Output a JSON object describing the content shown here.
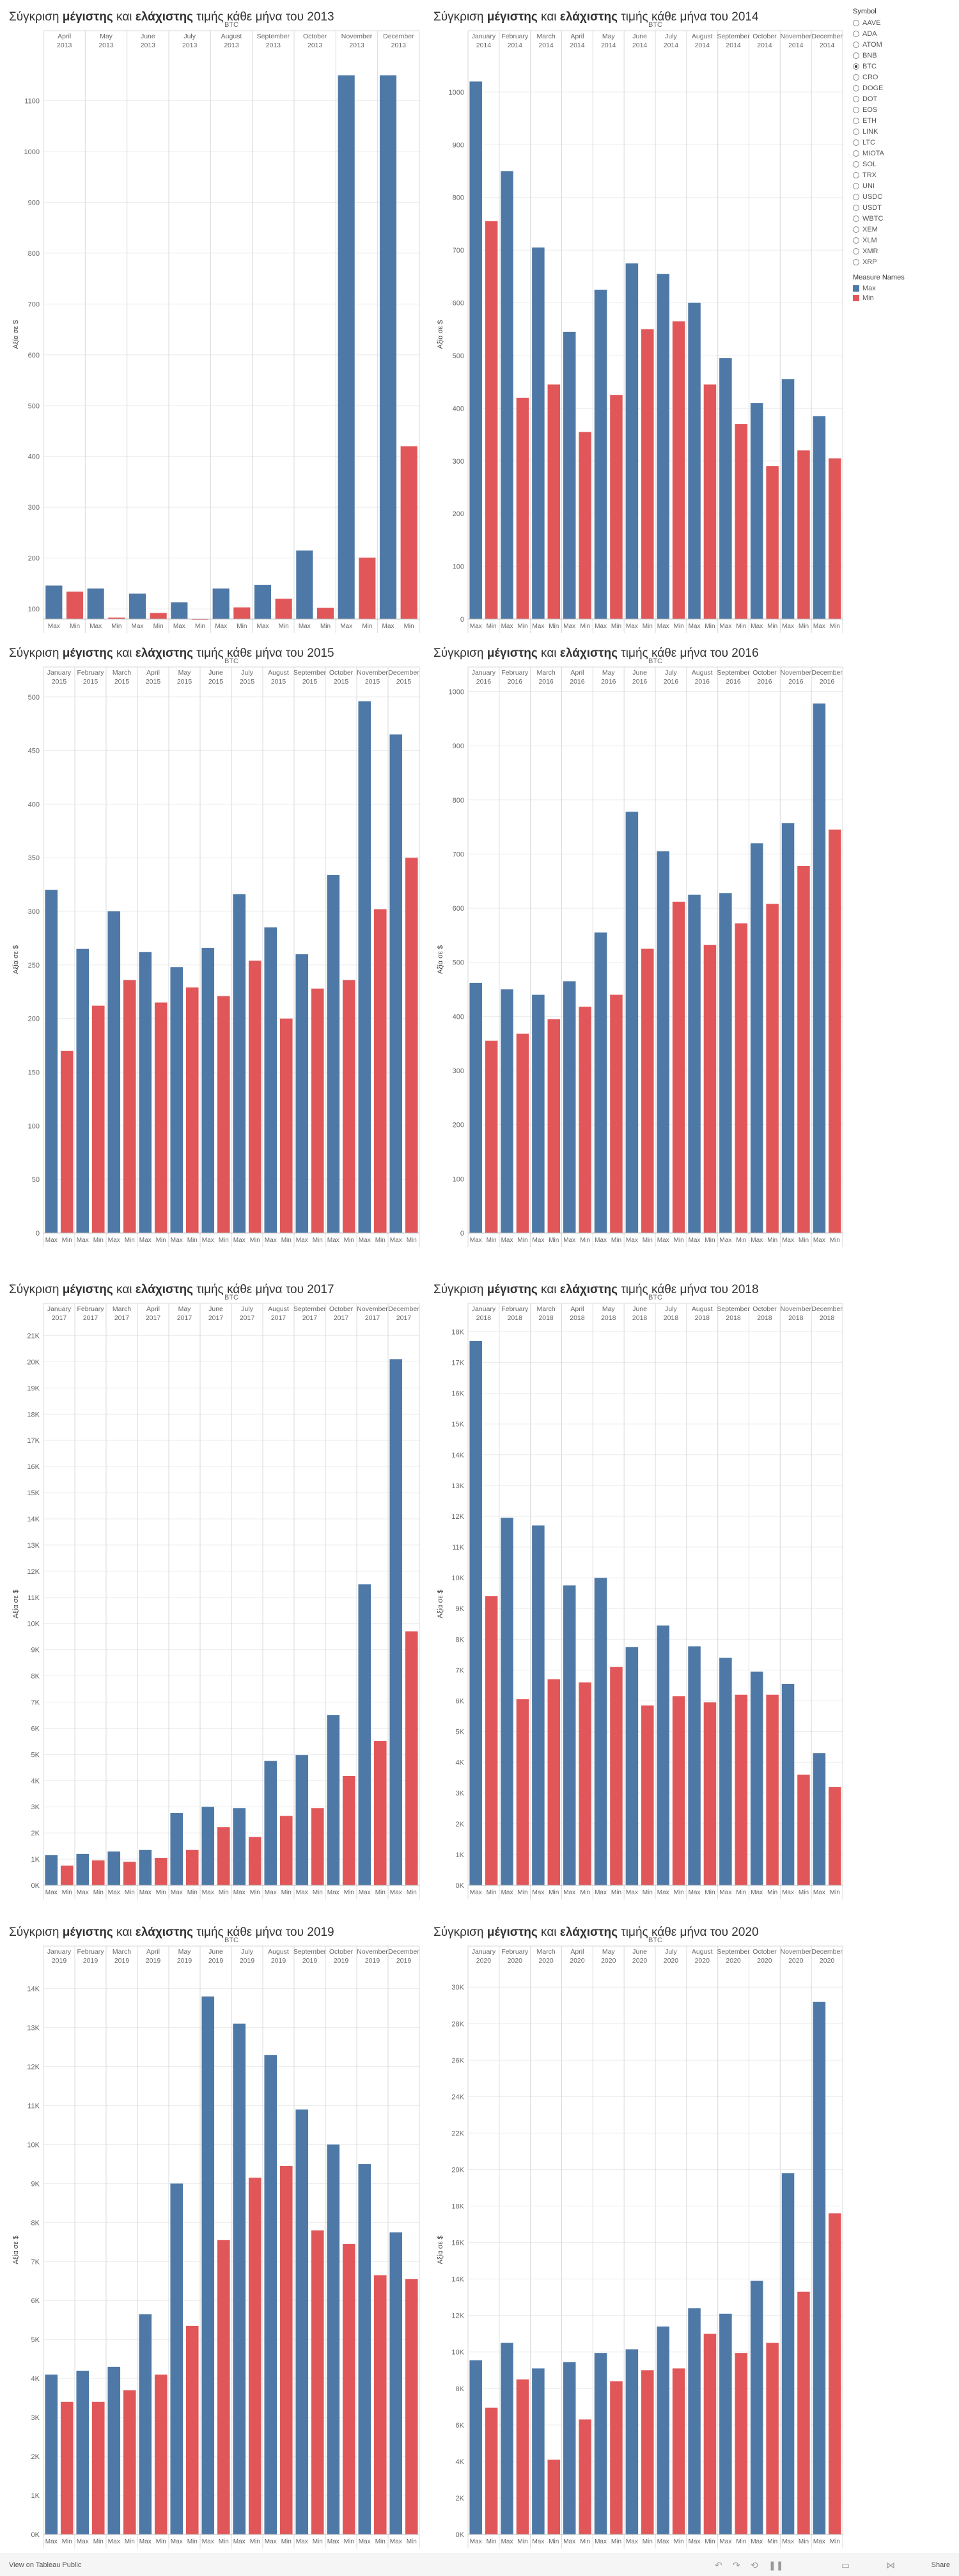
{
  "page": {
    "title_template": "Σύγκριση μέγιστης και ελάχιστης τιμής κάθε μήνα του YEAR"
  },
  "title_parts": {
    "prefix": "Σύγκριση",
    "max_word": "μέγιστης",
    "and": "και",
    "min_word": "ελάχιστης",
    "suffix": "τιμής κάθε μήνα του"
  },
  "colors": {
    "max": "#4e79a7",
    "min": "#e15759",
    "grid": "#ececec",
    "divider": "#d9d9d9",
    "text": "#666666"
  },
  "legend": {
    "symbol_title": "Symbol",
    "symbols": [
      "AAVE",
      "ADA",
      "ATOM",
      "BNB",
      "BTC",
      "CRO",
      "DOGE",
      "DOT",
      "EOS",
      "ETH",
      "LINK",
      "LTC",
      "MIOTA",
      "SOL",
      "TRX",
      "UNI",
      "USDC",
      "USDT",
      "WBTC",
      "XEM",
      "XLM",
      "XMR",
      "XRP"
    ],
    "selected": "BTC",
    "measure_title": "Measure Names",
    "measures": [
      {
        "name": "Max",
        "color": "#4e79a7"
      },
      {
        "name": "Min",
        "color": "#e15759"
      }
    ]
  },
  "footer": {
    "view_text": "View on Tableau Public",
    "share": "Share"
  },
  "chart_data": [
    {
      "type": "bar",
      "year": "2013",
      "symbol": "BTC",
      "ylabel": "Αξία σε $",
      "ylim": [
        80,
        1200
      ],
      "yticks": [
        100,
        200,
        300,
        400,
        500,
        600,
        700,
        800,
        900,
        1000,
        1100
      ],
      "ytick_labels": [
        "100",
        "200",
        "300",
        "400",
        "500",
        "600",
        "700",
        "800",
        "900",
        "1000",
        "1100"
      ],
      "months": [
        "April 2013",
        "May 2013",
        "June 2013",
        "July 2013",
        "August 2013",
        "September 2013",
        "October 2013",
        "November 2013",
        "December 2013"
      ],
      "measure_labels": [
        "Max",
        "Min"
      ],
      "series": [
        {
          "name": "Max",
          "values": [
            146,
            140,
            130,
            113,
            140,
            147,
            215,
            1150,
            1150
          ]
        },
        {
          "name": "Min",
          "values": [
            134,
            83,
            92,
            68,
            103,
            120,
            102,
            201,
            420
          ]
        }
      ]
    },
    {
      "type": "bar",
      "year": "2014",
      "symbol": "BTC",
      "ylabel": "Αξία σε $",
      "ylim": [
        0,
        1080
      ],
      "yticks": [
        0,
        100,
        200,
        300,
        400,
        500,
        600,
        700,
        800,
        900,
        1000
      ],
      "ytick_labels": [
        "0",
        "100",
        "200",
        "300",
        "400",
        "500",
        "600",
        "700",
        "800",
        "900",
        "1000"
      ],
      "months": [
        "January 2014",
        "February 2014",
        "March 2014",
        "April 2014",
        "May 2014",
        "June 2014",
        "July 2014",
        "August 2014",
        "September 2014",
        "October 2014",
        "November 2014",
        "December 2014"
      ],
      "measure_labels": [
        "Max",
        "Min"
      ],
      "series": [
        {
          "name": "Max",
          "values": [
            1020,
            850,
            705,
            545,
            625,
            675,
            655,
            600,
            495,
            410,
            455,
            385
          ]
        },
        {
          "name": "Min",
          "values": [
            755,
            420,
            445,
            355,
            425,
            550,
            565,
            445,
            370,
            290,
            320,
            305
          ]
        }
      ]
    },
    {
      "type": "bar",
      "year": "2015",
      "symbol": "BTC",
      "ylabel": "Αξία σε $",
      "ylim": [
        0,
        510
      ],
      "yticks": [
        0,
        50,
        100,
        150,
        200,
        250,
        300,
        350,
        400,
        450,
        500
      ],
      "ytick_labels": [
        "0",
        "50",
        "100",
        "150",
        "200",
        "250",
        "300",
        "350",
        "400",
        "450",
        "500"
      ],
      "months": [
        "January 2015",
        "February 2015",
        "March 2015",
        "April 2015",
        "May 2015",
        "June 2015",
        "July 2015",
        "August 2015",
        "September 2015",
        "October 2015",
        "November 2015",
        "December 2015"
      ],
      "measure_labels": [
        "Max",
        "Min"
      ],
      "series": [
        {
          "name": "Max",
          "values": [
            320,
            265,
            300,
            262,
            248,
            266,
            316,
            285,
            260,
            334,
            496,
            465
          ]
        },
        {
          "name": "Min",
          "values": [
            170,
            212,
            236,
            215,
            229,
            221,
            254,
            200,
            228,
            236,
            302,
            350
          ]
        }
      ]
    },
    {
      "type": "bar",
      "year": "2016",
      "symbol": "BTC",
      "ylabel": "Αξία σε $",
      "ylim": [
        0,
        1010
      ],
      "yticks": [
        0,
        100,
        200,
        300,
        400,
        500,
        600,
        700,
        800,
        900,
        1000
      ],
      "ytick_labels": [
        "0",
        "100",
        "200",
        "300",
        "400",
        "500",
        "600",
        "700",
        "800",
        "900",
        "1000"
      ],
      "months": [
        "January 2016",
        "February 2016",
        "March 2016",
        "April 2016",
        "May 2016",
        "June 2016",
        "July 2016",
        "August 2016",
        "September 2016",
        "October 2016",
        "November 2016",
        "December 2016"
      ],
      "measure_labels": [
        "Max",
        "Min"
      ],
      "series": [
        {
          "name": "Max",
          "values": [
            462,
            450,
            440,
            465,
            555,
            778,
            705,
            625,
            628,
            720,
            757,
            978
          ]
        },
        {
          "name": "Min",
          "values": [
            355,
            368,
            395,
            418,
            440,
            525,
            612,
            532,
            572,
            608,
            678,
            745
          ]
        }
      ]
    },
    {
      "type": "bar",
      "year": "2017",
      "symbol": "BTC",
      "ylabel": "Αξία σε $",
      "ylim": [
        0,
        21500
      ],
      "yticks": [
        0,
        1000,
        2000,
        3000,
        4000,
        5000,
        6000,
        7000,
        8000,
        9000,
        10000,
        11000,
        12000,
        13000,
        14000,
        15000,
        16000,
        17000,
        18000,
        19000,
        20000,
        21000
      ],
      "ytick_labels": [
        "0K",
        "1K",
        "2K",
        "3K",
        "4K",
        "5K",
        "6K",
        "7K",
        "8K",
        "9K",
        "10K",
        "11K",
        "12K",
        "13K",
        "14K",
        "15K",
        "16K",
        "17K",
        "18K",
        "19K",
        "20K",
        "21K"
      ],
      "months": [
        "January 2017",
        "February 2017",
        "March 2017",
        "April 2017",
        "May 2017",
        "June 2017",
        "July 2017",
        "August 2017",
        "September 2017",
        "October 2017",
        "November 2017",
        "December 2017"
      ],
      "measure_labels": [
        "Max",
        "Min"
      ],
      "series": [
        {
          "name": "Max",
          "values": [
            1150,
            1200,
            1290,
            1350,
            2760,
            3000,
            2950,
            4750,
            4980,
            6500,
            11500,
            20100
          ]
        },
        {
          "name": "Min",
          "values": [
            750,
            950,
            900,
            1050,
            1350,
            2220,
            1850,
            2650,
            2950,
            4180,
            5520,
            9700
          ]
        }
      ]
    },
    {
      "type": "bar",
      "year": "2018",
      "symbol": "BTC",
      "ylabel": "Αξία σε $",
      "ylim": [
        0,
        18300
      ],
      "yticks": [
        0,
        1000,
        2000,
        3000,
        4000,
        5000,
        6000,
        7000,
        8000,
        9000,
        10000,
        11000,
        12000,
        13000,
        14000,
        15000,
        16000,
        17000,
        18000
      ],
      "ytick_labels": [
        "0K",
        "1K",
        "2K",
        "3K",
        "4K",
        "5K",
        "6K",
        "7K",
        "8K",
        "9K",
        "10K",
        "11K",
        "12K",
        "13K",
        "14K",
        "15K",
        "16K",
        "17K",
        "18K"
      ],
      "months": [
        "January 2018",
        "February 2018",
        "March 2018",
        "April 2018",
        "May 2018",
        "June 2018",
        "July 2018",
        "August 2018",
        "September 2018",
        "October 2018",
        "November 2018",
        "December 2018"
      ],
      "measure_labels": [
        "Max",
        "Min"
      ],
      "series": [
        {
          "name": "Max",
          "values": [
            17700,
            11950,
            11700,
            9750,
            10000,
            7750,
            8450,
            7770,
            7400,
            6950,
            6550,
            4300
          ]
        },
        {
          "name": "Min",
          "values": [
            9400,
            6050,
            6700,
            6600,
            7100,
            5850,
            6150,
            5950,
            6200,
            6200,
            3600,
            3200
          ]
        }
      ]
    },
    {
      "type": "bar",
      "year": "2019",
      "symbol": "BTC",
      "ylabel": "Αξία σε $",
      "ylim": [
        0,
        14600
      ],
      "yticks": [
        0,
        1000,
        2000,
        3000,
        4000,
        5000,
        6000,
        7000,
        8000,
        9000,
        10000,
        11000,
        12000,
        13000,
        14000
      ],
      "ytick_labels": [
        "0K",
        "1K",
        "2K",
        "3K",
        "4K",
        "5K",
        "6K",
        "7K",
        "8K",
        "9K",
        "10K",
        "11K",
        "12K",
        "13K",
        "14K"
      ],
      "months": [
        "January 2019",
        "February 2019",
        "March 2019",
        "April 2019",
        "May 2019",
        "June 2019",
        "July 2019",
        "August 2019",
        "September 2019",
        "October 2019",
        "November 2019",
        "December 2019"
      ],
      "measure_labels": [
        "Max",
        "Min"
      ],
      "series": [
        {
          "name": "Max",
          "values": [
            4100,
            4200,
            4300,
            5650,
            9000,
            13800,
            13100,
            12300,
            10900,
            10000,
            9500,
            7750
          ]
        },
        {
          "name": "Min",
          "values": [
            3400,
            3400,
            3700,
            4100,
            5350,
            7550,
            9150,
            9450,
            7800,
            7450,
            6650,
            6550
          ]
        }
      ]
    },
    {
      "type": "bar",
      "year": "2020",
      "symbol": "BTC",
      "ylabel": "Αξία σε $",
      "ylim": [
        0,
        31200
      ],
      "yticks": [
        0,
        2000,
        4000,
        6000,
        8000,
        10000,
        12000,
        14000,
        16000,
        18000,
        20000,
        22000,
        24000,
        26000,
        28000,
        30000
      ],
      "ytick_labels": [
        "0K",
        "2K",
        "4K",
        "6K",
        "8K",
        "10K",
        "12K",
        "14K",
        "16K",
        "18K",
        "20K",
        "22K",
        "24K",
        "26K",
        "28K",
        "30K"
      ],
      "months": [
        "January 2020",
        "February 2020",
        "March 2020",
        "April 2020",
        "May 2020",
        "June 2020",
        "July 2020",
        "August 2020",
        "September 2020",
        "October 2020",
        "November 2020",
        "December 2020"
      ],
      "measure_labels": [
        "Max",
        "Min"
      ],
      "series": [
        {
          "name": "Max",
          "values": [
            9550,
            10500,
            9100,
            9450,
            9950,
            10150,
            11400,
            12400,
            12100,
            13900,
            19800,
            29200
          ]
        },
        {
          "name": "Min",
          "values": [
            6950,
            8500,
            4100,
            6300,
            8400,
            9000,
            9100,
            11000,
            9950,
            10500,
            13300,
            17600
          ]
        }
      ]
    }
  ]
}
